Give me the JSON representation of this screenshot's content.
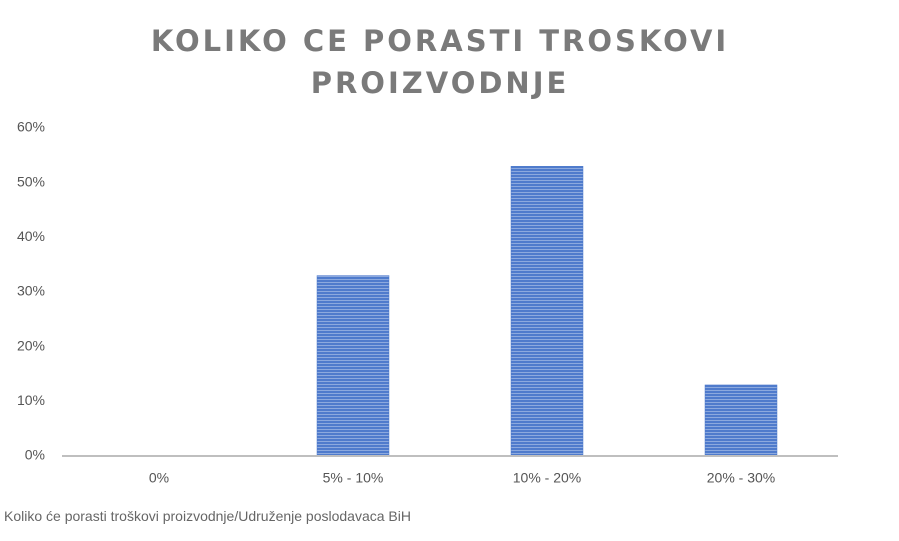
{
  "chart_data": {
    "type": "bar",
    "title": "KOLIKO CE PORASTI TROSKOVI PROIZVODNJE",
    "categories": [
      "0%",
      "5% - 10%",
      "10% - 20%",
      "20% - 30%"
    ],
    "values": [
      0,
      33,
      53,
      13
    ],
    "color": "#4f7bcc",
    "ylim": [
      0,
      60
    ],
    "yticks": [
      {
        "value": 0,
        "label": "0%"
      },
      {
        "value": 10,
        "label": "10%"
      },
      {
        "value": 20,
        "label": "20%"
      },
      {
        "value": 30,
        "label": "30%"
      },
      {
        "value": 40,
        "label": "40%"
      },
      {
        "value": 50,
        "label": "50%"
      },
      {
        "value": 60,
        "label": "60%"
      }
    ],
    "grid": false,
    "caption": "Koliko će porasti troškovi proizvodnje/Udruženje poslodavaca BiH"
  }
}
